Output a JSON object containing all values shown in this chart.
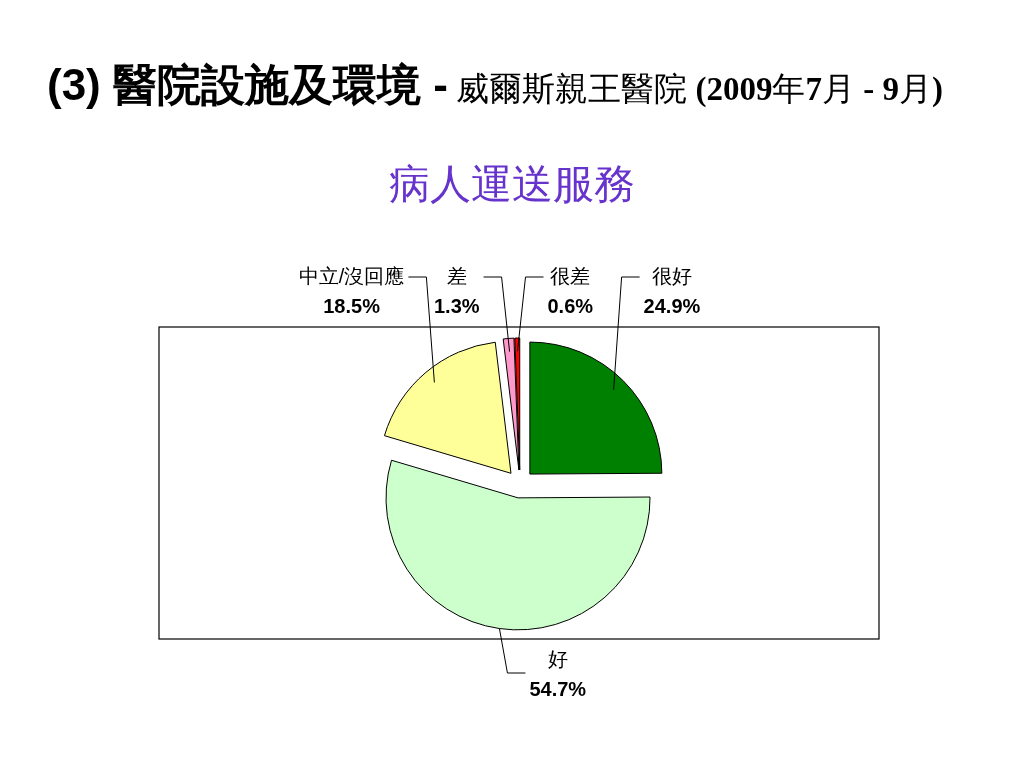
{
  "chart_data": {
    "type": "pie",
    "title": "**(3) 醫院設施及環境 -** 威爾斯親王醫院 **(2009**年**7**月 **- 9**月**)**",
    "subtitle": "病人運送服務",
    "categories": [
      "很好",
      "好",
      "中立/沒回應",
      "差",
      "很差"
    ],
    "values": [
      24.9,
      54.7,
      18.5,
      1.3,
      0.6
    ],
    "colors": [
      "#008000",
      "#ccffcc",
      "#ffff99",
      "#ff99cc",
      "#ff0000"
    ],
    "value_labels": [
      "24.9%",
      "54.7%",
      "18.5%",
      "1.3%",
      "0.6%"
    ]
  }
}
